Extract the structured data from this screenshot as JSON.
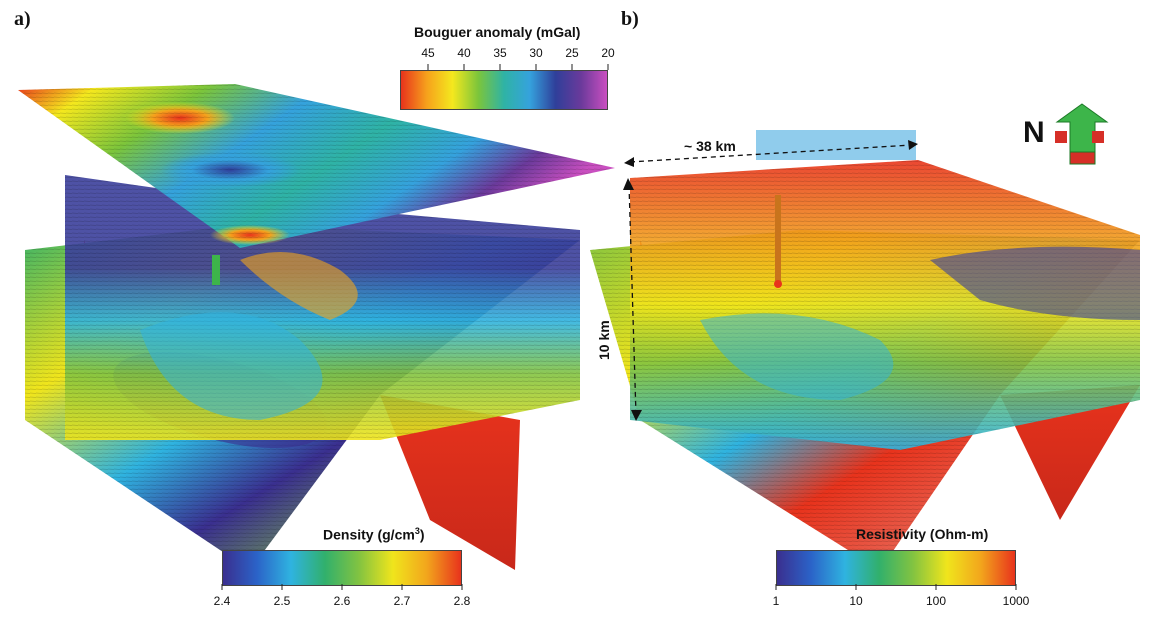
{
  "panels": {
    "a_label": "a)",
    "b_label": "b)"
  },
  "bouguer": {
    "title": "Bouguer anomaly (mGal)",
    "ticks": [
      "45",
      "40",
      "35",
      "30",
      "25",
      "20"
    ],
    "colors": [
      "#e8331c",
      "#f6a11c",
      "#f4e81e",
      "#7cc53b",
      "#2fb3a5",
      "#35a2dd",
      "#2f3f9a",
      "#6b3a9b",
      "#c94fc0"
    ]
  },
  "density": {
    "title_main": "Density (g/cm",
    "title_sup": "3",
    "title_end": ")",
    "ticks": [
      "2.4",
      "2.5",
      "2.6",
      "2.7",
      "2.8"
    ],
    "colors": [
      "#3a2f8f",
      "#2b63c8",
      "#2fb3e0",
      "#31b06c",
      "#82c341",
      "#f0e51c",
      "#f2a51c",
      "#e8331c"
    ]
  },
  "resistivity": {
    "title": "Resistivity (Ohm-m)",
    "ticks": [
      "1",
      "10",
      "100",
      "1000"
    ],
    "colors": [
      "#3a2f8f",
      "#2b63c8",
      "#2fb3e0",
      "#31b06c",
      "#82c341",
      "#f0e51c",
      "#f2a51c",
      "#e8331c"
    ]
  },
  "annotations": {
    "width_label": "~ 38 km",
    "depth_label": "10 km",
    "north_label": "N"
  },
  "colors": {
    "arrow_green": "#3db54a",
    "arrow_red": "#d62f27",
    "seismic_purple": "#3b3f9b"
  }
}
